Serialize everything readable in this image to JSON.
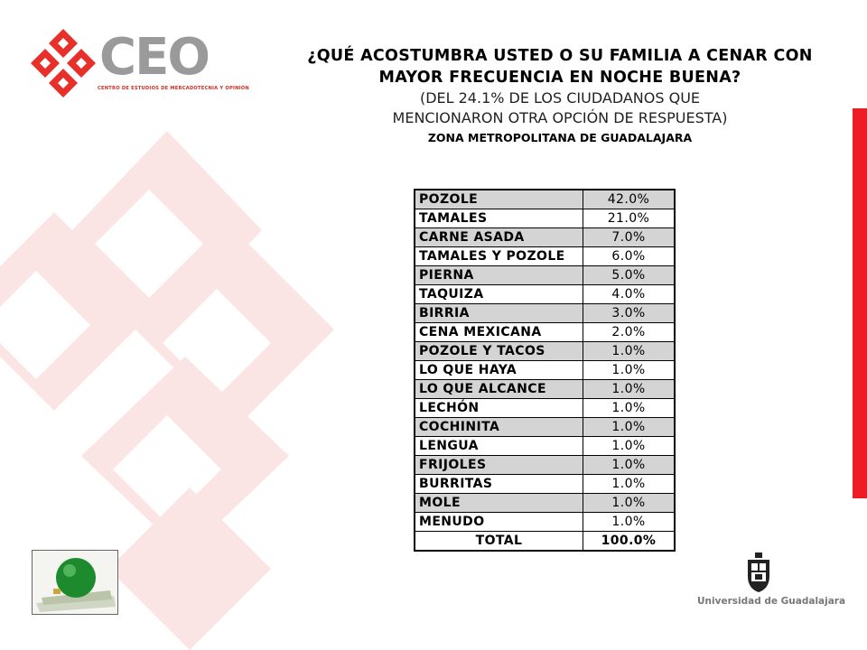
{
  "logo": {
    "text": "CEO",
    "subtitle": "CENTRO DE ESTUDIOS DE MERCADOTECNIA Y OPINIÓN",
    "colors": {
      "red": "#e8302a",
      "gray": "#9a9a9a"
    }
  },
  "header": {
    "title_line1": "¿QUÉ ACOSTUMBRA USTED O SU FAMILIA A CENAR CON",
    "title_line2": "MAYOR FRECUENCIA  EN NOCHE BUENA?",
    "subtitle_line1": "(DEL 24.1% DE LOS CIUDADANOS QUE",
    "subtitle_line2": "MENCIONARON OTRA OPCIÓN DE RESPUESTA)",
    "zone": "ZONA METROPOLITANA DE GUADALAJARA"
  },
  "table": {
    "rows": [
      {
        "label": "POZOLE",
        "value": "42.0%"
      },
      {
        "label": "TAMALES",
        "value": "21.0%"
      },
      {
        "label": "CARNE ASADA",
        "value": "7.0%"
      },
      {
        "label": "TAMALES Y POZOLE",
        "value": "6.0%"
      },
      {
        "label": "PIERNA",
        "value": "5.0%"
      },
      {
        "label": "TAQUIZA",
        "value": "4.0%"
      },
      {
        "label": "BIRRIA",
        "value": "3.0%"
      },
      {
        "label": "CENA MEXICANA",
        "value": "2.0%"
      },
      {
        "label": "POZOLE Y TACOS",
        "value": "1.0%"
      },
      {
        "label": "LO QUE HAYA",
        "value": "1.0%"
      },
      {
        "label": "LO QUE ALCANCE",
        "value": "1.0%"
      },
      {
        "label": "LECHÓN",
        "value": "1.0%"
      },
      {
        "label": "COCHINITA",
        "value": "1.0%"
      },
      {
        "label": "LENGUA",
        "value": "1.0%"
      },
      {
        "label": "FRIJOLES",
        "value": "1.0%"
      },
      {
        "label": "BURRITAS",
        "value": "1.0%"
      },
      {
        "label": "MOLE",
        "value": "1.0%"
      },
      {
        "label": "MENUDO",
        "value": "1.0%"
      }
    ],
    "total": {
      "label": "TOTAL",
      "value": "100.0%"
    }
  },
  "footer": {
    "university": "Universidad de Guadalajara"
  },
  "icons": {
    "photo": "christmas-ornament-photo-icon",
    "crest": "university-crest-icon"
  },
  "colors": {
    "accent_red": "#ee1c25",
    "row_shade": "#d4d4d4"
  }
}
